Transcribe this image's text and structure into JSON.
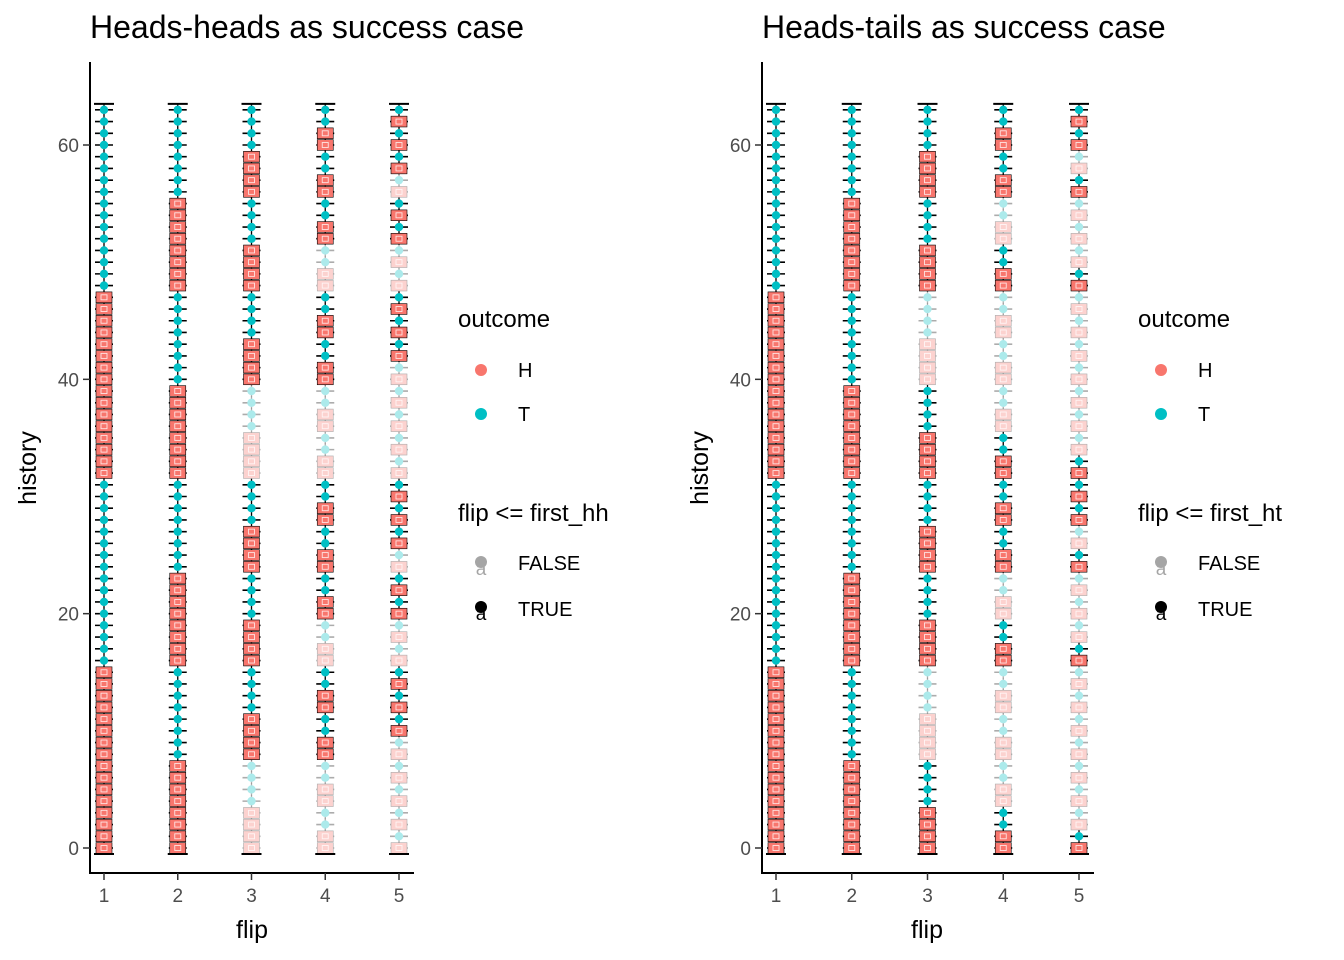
{
  "chart_data": [
    {
      "type": "scatter",
      "title": "Heads-heads as success case",
      "xlabel": "flip",
      "ylabel": "history",
      "x_ticks": [
        "1",
        "2",
        "3",
        "4",
        "5"
      ],
      "y_ticks": [
        "0",
        "20",
        "40",
        "60"
      ],
      "xlim": [
        0.8,
        5.2
      ],
      "ylim": [
        -2,
        66
      ],
      "grid": false,
      "histories": 64,
      "x": [
        1,
        2,
        3,
        4,
        5
      ],
      "outcome_rule": "flip k is H when bit (6-k) of the history index is 0",
      "highlight_rule": "flip <= first_hh",
      "legend": {
        "color_title": "outcome",
        "color_entries": [
          {
            "label": "H",
            "color": "#F8766D"
          },
          {
            "label": "T",
            "color": "#00BFC4"
          }
        ],
        "alpha_title": "flip <= first_hh",
        "alpha_entries": [
          "FALSE",
          "TRUE"
        ],
        "placement": "right"
      }
    },
    {
      "type": "scatter",
      "title": "Heads-tails as success case",
      "xlabel": "flip",
      "ylabel": "history",
      "x_ticks": [
        "1",
        "2",
        "3",
        "4",
        "5"
      ],
      "y_ticks": [
        "0",
        "20",
        "40",
        "60"
      ],
      "xlim": [
        0.8,
        5.2
      ],
      "ylim": [
        -2,
        66
      ],
      "grid": false,
      "histories": 64,
      "x": [
        1,
        2,
        3,
        4,
        5
      ],
      "outcome_rule": "flip k is H when bit (6-k) of the history index is 0",
      "highlight_rule": "flip <= first_ht",
      "legend": {
        "color_title": "outcome",
        "color_entries": [
          {
            "label": "H",
            "color": "#F8766D"
          },
          {
            "label": "T",
            "color": "#00BFC4"
          }
        ],
        "alpha_title": "flip <= first_ht",
        "alpha_entries": [
          "FALSE",
          "TRUE"
        ],
        "placement": "right"
      }
    }
  ]
}
